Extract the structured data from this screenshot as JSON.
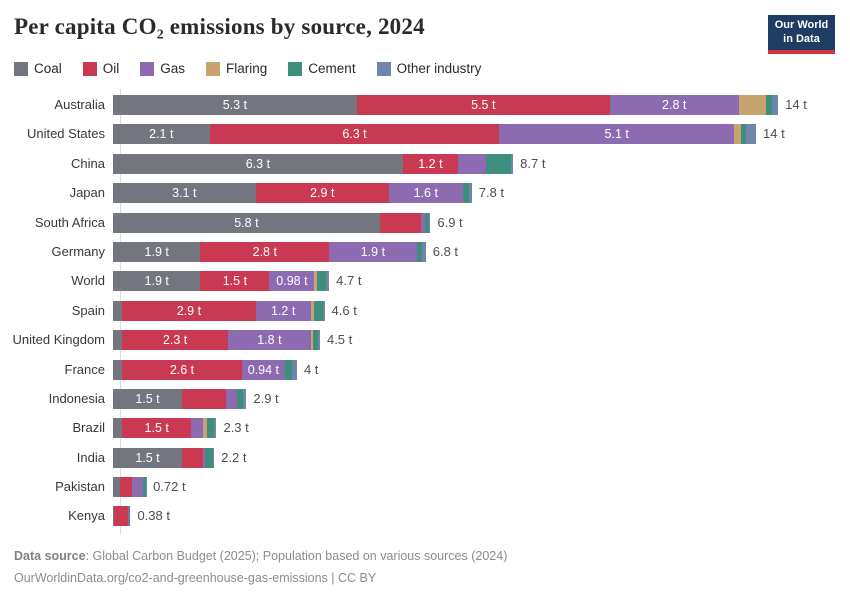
{
  "title": "Per capita CO₂ emissions by source, 2024",
  "logo": {
    "line1": "Our World",
    "line2": "in Data",
    "bg_color": "#1d3d63",
    "accent_color": "#cf3441"
  },
  "footer": {
    "source_label": "Data source",
    "source_text": ": Global Carbon Budget (2025); Population based on various sources (2024)",
    "url_line": "OurWorldinData.org/co2-and-greenhouse-gas-emissions | CC BY"
  },
  "chart_data": {
    "type": "bar",
    "stacked": true,
    "orientation": "horizontal",
    "unit": "t",
    "legend_position": "top",
    "xlim": [
      0,
      14.5
    ],
    "sources": [
      {
        "key": "coal",
        "label": "Coal",
        "color": "#73767e"
      },
      {
        "key": "oil",
        "label": "Oil",
        "color": "#c93a52"
      },
      {
        "key": "gas",
        "label": "Gas",
        "color": "#8d6bb1"
      },
      {
        "key": "flaring",
        "label": "Flaring",
        "color": "#c8a370"
      },
      {
        "key": "cement",
        "label": "Cement",
        "color": "#3d8e7c"
      },
      {
        "key": "other_industry",
        "label": "Other industry",
        "color": "#6d86aa"
      }
    ],
    "rows": [
      {
        "country": "Australia",
        "total_label": "14 t",
        "values": {
          "coal": 5.3,
          "oil": 5.5,
          "gas": 2.8,
          "flaring": 0.6,
          "cement": 0.13,
          "other_industry": 0.13
        },
        "labels": {
          "coal": "5.3 t",
          "oil": "5.5 t",
          "gas": "2.8 t"
        }
      },
      {
        "country": "United States",
        "total_label": "14 t",
        "values": {
          "coal": 2.1,
          "oil": 6.3,
          "gas": 5.1,
          "flaring": 0.15,
          "cement": 0.11,
          "other_industry": 0.22
        },
        "labels": {
          "coal": "2.1 t",
          "oil": "6.3 t",
          "gas": "5.1 t"
        }
      },
      {
        "country": "China",
        "total_label": "8.7 t",
        "values": {
          "coal": 6.3,
          "oil": 1.2,
          "gas": 0.6,
          "flaring": 0.01,
          "cement": 0.55,
          "other_industry": 0.04
        },
        "labels": {
          "coal": "6.3 t",
          "oil": "1.2 t"
        }
      },
      {
        "country": "Japan",
        "total_label": "7.8 t",
        "values": {
          "coal": 3.1,
          "oil": 2.9,
          "gas": 1.6,
          "flaring": 0.01,
          "cement": 0.13,
          "other_industry": 0.06
        },
        "labels": {
          "coal": "3.1 t",
          "oil": "2.9 t",
          "gas": "1.6 t"
        }
      },
      {
        "country": "South Africa",
        "total_label": "6.9 t",
        "values": {
          "coal": 5.8,
          "oil": 0.9,
          "gas": 0.08,
          "flaring": 0.0,
          "cement": 0.1,
          "other_industry": 0.02
        },
        "labels": {
          "coal": "5.8 t"
        }
      },
      {
        "country": "Germany",
        "total_label": "6.8 t",
        "values": {
          "coal": 1.9,
          "oil": 2.8,
          "gas": 1.9,
          "flaring": 0.01,
          "cement": 0.1,
          "other_industry": 0.09
        },
        "labels": {
          "coal": "1.9 t",
          "oil": "2.8 t",
          "gas": "1.9 t"
        }
      },
      {
        "country": "World",
        "total_label": "4.7 t",
        "values": {
          "coal": 1.9,
          "oil": 1.5,
          "gas": 0.98,
          "flaring": 0.06,
          "cement": 0.2,
          "other_industry": 0.06
        },
        "labels": {
          "coal": "1.9 t",
          "oil": "1.5 t",
          "gas": "0.98 t"
        }
      },
      {
        "country": "Spain",
        "total_label": "4.6 t",
        "values": {
          "coal": 0.2,
          "oil": 2.9,
          "gas": 1.2,
          "flaring": 0.06,
          "cement": 0.2,
          "other_industry": 0.04
        },
        "labels": {
          "oil": "2.9 t",
          "gas": "1.2 t"
        }
      },
      {
        "country": "United Kingdom",
        "total_label": "4.5 t",
        "values": {
          "coal": 0.2,
          "oil": 2.3,
          "gas": 1.8,
          "flaring": 0.05,
          "cement": 0.1,
          "other_industry": 0.05
        },
        "labels": {
          "oil": "2.3 t",
          "gas": "1.8 t"
        }
      },
      {
        "country": "France",
        "total_label": "4 t",
        "values": {
          "coal": 0.2,
          "oil": 2.6,
          "gas": 0.94,
          "flaring": 0.01,
          "cement": 0.15,
          "other_industry": 0.1
        },
        "labels": {
          "oil": "2.6 t",
          "gas": "0.94 t"
        }
      },
      {
        "country": "Indonesia",
        "total_label": "2.9 t",
        "values": {
          "coal": 1.5,
          "oil": 0.95,
          "gas": 0.25,
          "flaring": 0.0,
          "cement": 0.12,
          "other_industry": 0.08
        },
        "labels": {
          "coal": "1.5 t"
        }
      },
      {
        "country": "Brazil",
        "total_label": "2.3 t",
        "values": {
          "coal": 0.2,
          "oil": 1.5,
          "gas": 0.25,
          "flaring": 0.1,
          "cement": 0.15,
          "other_industry": 0.05
        },
        "labels": {
          "oil": "1.5 t"
        }
      },
      {
        "country": "India",
        "total_label": "2.2 t",
        "values": {
          "coal": 1.5,
          "oil": 0.45,
          "gas": 0.05,
          "flaring": 0.0,
          "cement": 0.17,
          "other_industry": 0.03
        },
        "labels": {
          "coal": "1.5 t"
        }
      },
      {
        "country": "Pakistan",
        "total_label": "0.72 t",
        "values": {
          "coal": 0.15,
          "oil": 0.26,
          "gas": 0.24,
          "flaring": 0.0,
          "cement": 0.06,
          "other_industry": 0.01
        },
        "labels": {}
      },
      {
        "country": "Kenya",
        "total_label": "0.38 t",
        "values": {
          "coal": 0.02,
          "oil": 0.31,
          "gas": 0.01,
          "flaring": 0.0,
          "cement": 0.04,
          "other_industry": 0.0
        },
        "labels": {}
      }
    ]
  }
}
